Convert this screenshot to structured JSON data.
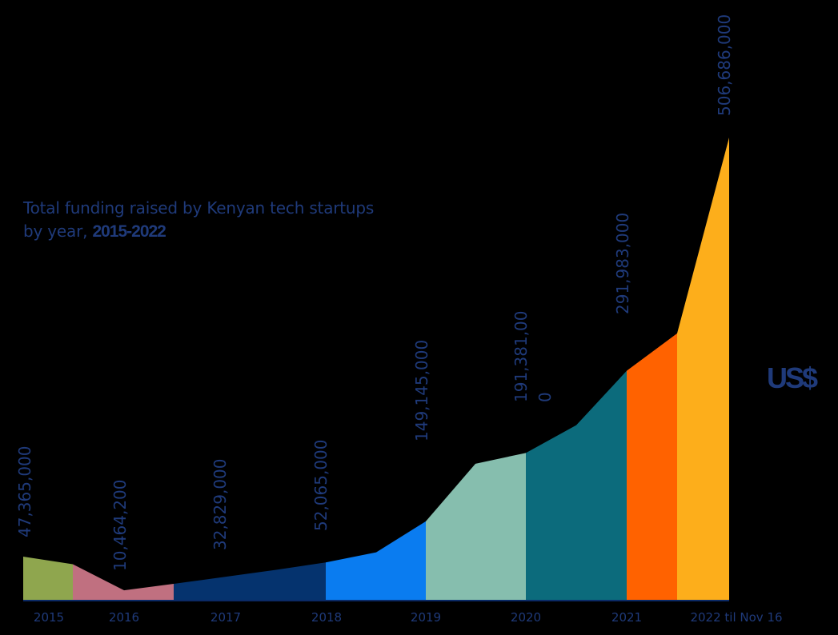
{
  "chart_data": {
    "type": "area",
    "title": "Total funding raised by Kenyan tech startups",
    "title_line2_prefix": "by year, ",
    "title_line2_bold": "2015-2022",
    "unit": "US$",
    "categories": [
      "2015",
      "2016",
      "2017",
      "2018",
      "2019",
      "2020",
      "2021",
      "2022  til Nov 16"
    ],
    "values": [
      47365000,
      10464200,
      32829000,
      52065000,
      149145000,
      191381000,
      291983000,
      506686000
    ],
    "value_labels": [
      "47,365,000",
      "10,464,200",
      "32,829,000",
      "52,065,000",
      "149,145,000",
      "191,381,000",
      "291,983,000",
      "506,686,000"
    ],
    "colors": [
      "#8fa64e",
      "#c07080",
      "#05336e",
      "#0a7cf0",
      "#86beae",
      "#0c6b7c",
      "#ff6200",
      "#fdae1b"
    ],
    "ylim": [
      0,
      506686000
    ],
    "grid": false,
    "legend": "none"
  }
}
